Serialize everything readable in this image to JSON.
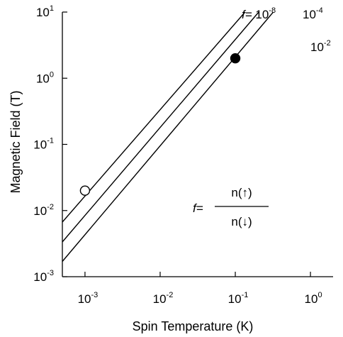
{
  "chart_data": {
    "type": "line",
    "xlabel": "Spin Temperature (K)",
    "ylabel": "Magnetic Field (T)",
    "x_scale": "log",
    "y_scale": "log",
    "xlim": [
      0.0005,
      2
    ],
    "ylim": [
      0.001,
      10
    ],
    "x_ticks": [
      {
        "mantissa": "10",
        "exponent": "-3",
        "value": 0.001
      },
      {
        "mantissa": "10",
        "exponent": "-2",
        "value": 0.01
      },
      {
        "mantissa": "10",
        "exponent": "-1",
        "value": 0.1
      },
      {
        "mantissa": "10",
        "exponent": "0",
        "value": 1
      }
    ],
    "y_ticks": [
      {
        "mantissa": "10",
        "exponent": "-3",
        "value": 0.001
      },
      {
        "mantissa": "10",
        "exponent": "-2",
        "value": 0.01
      },
      {
        "mantissa": "10",
        "exponent": "-1",
        "value": 0.1
      },
      {
        "mantissa": "10",
        "exponent": "0",
        "value": 1
      },
      {
        "mantissa": "10",
        "exponent": "1",
        "value": 10
      }
    ],
    "series": [
      {
        "x": [
          0.0005,
          0.135
        ],
        "y": [
          0.0067,
          10
        ]
      },
      {
        "x": [
          0.0005,
          0.205
        ],
        "y": [
          0.00335,
          10
        ]
      },
      {
        "x": [
          0.0005,
          0.32
        ],
        "y": [
          0.0017,
          10
        ]
      }
    ],
    "line_labels": [
      {
        "prefix": "f=",
        "mantissa": "10",
        "exponent": "-8"
      },
      {
        "prefix": "",
        "mantissa": "10",
        "exponent": "-4"
      },
      {
        "prefix": "",
        "mantissa": "10",
        "exponent": "-2"
      }
    ],
    "points": [
      {
        "x": 0.001,
        "y": 0.02,
        "filled": false
      },
      {
        "x": 0.1,
        "y": 2.0,
        "filled": true
      }
    ],
    "formula": {
      "lhs": "f=",
      "numerator": "n(↑)",
      "denominator": "n(↓)"
    },
    "grid": false,
    "colors": {
      "line": "#000000",
      "background": "#ffffff"
    }
  }
}
